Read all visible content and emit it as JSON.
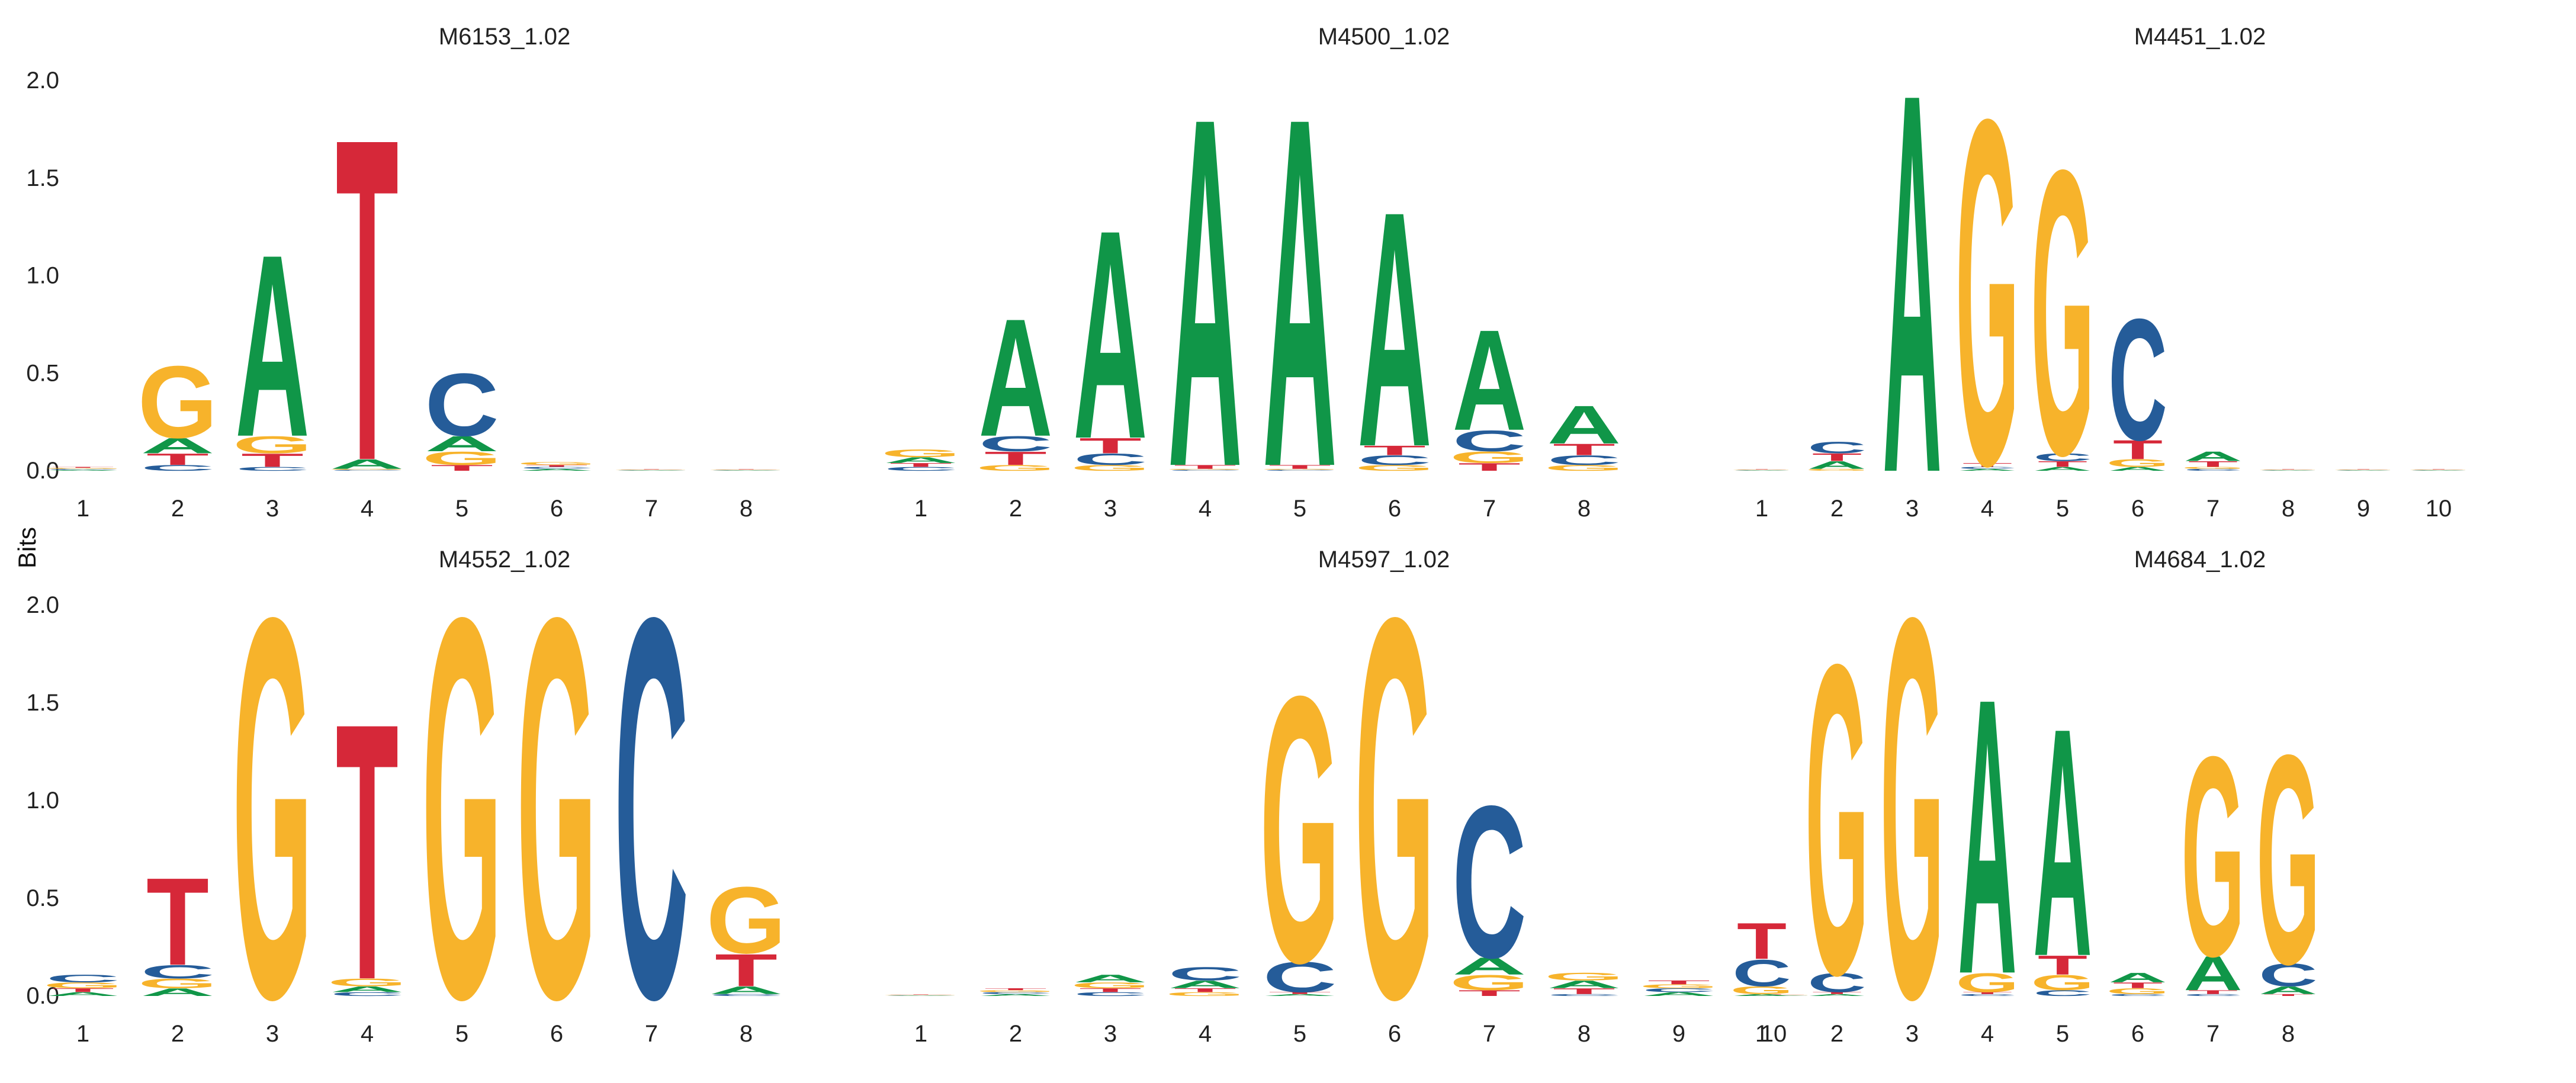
{
  "figure": {
    "ylabel": "Bits"
  },
  "colors": {
    "A": "#109648",
    "C": "#255C99",
    "G": "#F7B32B",
    "T": "#D62839"
  },
  "chart_data": [
    {
      "type": "sequence-logo",
      "title": "M6153_1.02",
      "ylim": [
        0,
        2
      ],
      "yticks": [
        "0.0",
        "0.5",
        "1.0",
        "1.5",
        "2.0"
      ],
      "positions": [
        "1",
        "2",
        "3",
        "4",
        "5",
        "6",
        "7",
        "8"
      ],
      "heights": [
        {
          "A": 0.005,
          "C": 0.005,
          "G": 0.005,
          "T": 0.005
        },
        {
          "A": 0.08,
          "C": 0.03,
          "G": 0.38,
          "T": 0.06
        },
        {
          "A": 0.96,
          "C": 0.02,
          "G": 0.09,
          "T": 0.07
        },
        {
          "A": 0.05,
          "C": 0.005,
          "G": 0.005,
          "T": 1.7
        },
        {
          "A": 0.08,
          "C": 0.33,
          "G": 0.07,
          "T": 0.03
        },
        {
          "A": 0.01,
          "C": 0.01,
          "G": 0.015,
          "T": 0.01
        },
        {
          "A": 0.002,
          "C": 0.002,
          "G": 0.002,
          "T": 0.002
        },
        {
          "A": 0.002,
          "C": 0.002,
          "G": 0.002,
          "T": 0.002
        }
      ]
    },
    {
      "type": "sequence-logo",
      "title": "M4500_1.02",
      "ylim": [
        0,
        2
      ],
      "yticks": [
        "0.0",
        "0.5",
        "1.0",
        "1.5",
        "2.0"
      ],
      "positions": [
        "1",
        "2",
        "3",
        "4",
        "5",
        "6",
        "7",
        "8"
      ],
      "heights": [
        {
          "A": 0.03,
          "C": 0.02,
          "G": 0.04,
          "T": 0.02
        },
        {
          "A": 0.62,
          "C": 0.08,
          "G": 0.03,
          "T": 0.07
        },
        {
          "A": 1.1,
          "C": 0.06,
          "G": 0.03,
          "T": 0.08
        },
        {
          "A": 1.84,
          "C": 0.005,
          "G": 0.005,
          "T": 0.02
        },
        {
          "A": 1.84,
          "C": 0.005,
          "G": 0.005,
          "T": 0.02
        },
        {
          "A": 1.24,
          "C": 0.05,
          "G": 0.03,
          "T": 0.05
        },
        {
          "A": 0.53,
          "C": 0.11,
          "G": 0.06,
          "T": 0.04
        },
        {
          "A": 0.2,
          "C": 0.05,
          "G": 0.03,
          "T": 0.06
        }
      ]
    },
    {
      "type": "sequence-logo",
      "title": "M4451_1.02",
      "ylim": [
        0,
        2
      ],
      "yticks": [
        "0.0",
        "0.5",
        "1.0",
        "1.5",
        "2.0"
      ],
      "positions": [
        "1",
        "2",
        "3",
        "4",
        "5",
        "6",
        "7",
        "8",
        "9",
        "10"
      ],
      "heights": [
        {
          "A": 0.002,
          "C": 0.002,
          "G": 0.002,
          "T": 0.002
        },
        {
          "A": 0.04,
          "C": 0.06,
          "G": 0.01,
          "T": 0.04
        },
        {
          "A": 2.0,
          "C": 0.0,
          "G": 0.0,
          "T": 0.0
        },
        {
          "A": 0.01,
          "C": 0.01,
          "G": 1.82,
          "T": 0.02
        },
        {
          "A": 0.02,
          "C": 0.04,
          "G": 1.5,
          "T": 0.03
        },
        {
          "A": 0.02,
          "C": 0.64,
          "G": 0.04,
          "T": 0.1
        },
        {
          "A": 0.05,
          "C": 0.01,
          "G": 0.01,
          "T": 0.03
        },
        {
          "A": 0.002,
          "C": 0.002,
          "G": 0.002,
          "T": 0.002
        },
        {
          "A": 0.002,
          "C": 0.002,
          "G": 0.002,
          "T": 0.002
        },
        {
          "A": 0.002,
          "C": 0.002,
          "G": 0.002,
          "T": 0.002
        }
      ]
    },
    {
      "type": "sequence-logo",
      "title": "M4552_1.02",
      "ylim": [
        0,
        2
      ],
      "yticks": [
        "0.0",
        "0.5",
        "1.0",
        "1.5",
        "2.0"
      ],
      "positions": [
        "1",
        "2",
        "3",
        "4",
        "5",
        "6",
        "7",
        "8"
      ],
      "heights": [
        {
          "A": 0.02,
          "C": 0.04,
          "G": 0.03,
          "T": 0.02
        },
        {
          "A": 0.04,
          "C": 0.07,
          "G": 0.05,
          "T": 0.46
        },
        {
          "A": 0.0,
          "C": 0.0,
          "G": 2.0,
          "T": 0.0
        },
        {
          "A": 0.03,
          "C": 0.02,
          "G": 0.04,
          "T": 1.35
        },
        {
          "A": 0.0,
          "C": 0.0,
          "G": 2.0,
          "T": 0.0
        },
        {
          "A": 0.0,
          "C": 0.0,
          "G": 2.0,
          "T": 0.0
        },
        {
          "A": 0.0,
          "C": 2.0,
          "G": 0.0,
          "T": 0.0
        },
        {
          "A": 0.04,
          "C": 0.01,
          "G": 0.35,
          "T": 0.17
        }
      ]
    },
    {
      "type": "sequence-logo",
      "title": "M4597_1.02",
      "ylim": [
        0,
        2
      ],
      "yticks": [
        "0.0",
        "0.5",
        "1.0",
        "1.5",
        "2.0"
      ],
      "positions": [
        "1",
        "2",
        "3",
        "4",
        "5",
        "6",
        "7",
        "8",
        "9",
        "10"
      ],
      "heights": [
        {
          "A": 0.002,
          "C": 0.002,
          "G": 0.002,
          "T": 0.002
        },
        {
          "A": 0.01,
          "C": 0.01,
          "G": 0.01,
          "T": 0.01
        },
        {
          "A": 0.04,
          "C": 0.02,
          "G": 0.03,
          "T": 0.02
        },
        {
          "A": 0.04,
          "C": 0.07,
          "G": 0.02,
          "T": 0.02
        },
        {
          "A": 0.01,
          "C": 0.16,
          "G": 1.4,
          "T": 0.01
        },
        {
          "A": 0.0,
          "C": 0.0,
          "G": 2.0,
          "T": 0.0
        },
        {
          "A": 0.09,
          "C": 0.8,
          "G": 0.08,
          "T": 0.03
        },
        {
          "A": 0.04,
          "C": 0.01,
          "G": 0.04,
          "T": 0.03
        },
        {
          "A": 0.02,
          "C": 0.02,
          "G": 0.02,
          "T": 0.02
        },
        {
          "A": 0.002,
          "C": 0.002,
          "G": 0.002,
          "T": 0.002
        }
      ]
    },
    {
      "type": "sequence-logo",
      "title": "M4684_1.02",
      "ylim": [
        0,
        2
      ],
      "yticks": [
        "0.0",
        "0.5",
        "1.0",
        "1.5",
        "2.0"
      ],
      "positions": [
        "1",
        "2",
        "3",
        "4",
        "5",
        "6",
        "7",
        "8"
      ],
      "heights": [
        {
          "A": 0.01,
          "C": 0.14,
          "G": 0.04,
          "T": 0.19
        },
        {
          "A": 0.01,
          "C": 0.1,
          "G": 1.63,
          "T": 0.01
        },
        {
          "A": 0.0,
          "C": 0.0,
          "G": 2.0,
          "T": 0.0
        },
        {
          "A": 1.45,
          "C": 0.01,
          "G": 0.1,
          "T": 0.01
        },
        {
          "A": 1.2,
          "C": 0.03,
          "G": 0.08,
          "T": 0.1
        },
        {
          "A": 0.05,
          "C": 0.01,
          "G": 0.03,
          "T": 0.03
        },
        {
          "A": 0.18,
          "C": 0.01,
          "G": 1.05,
          "T": 0.02
        },
        {
          "A": 0.04,
          "C": 0.12,
          "G": 1.1,
          "T": 0.01
        }
      ]
    }
  ]
}
